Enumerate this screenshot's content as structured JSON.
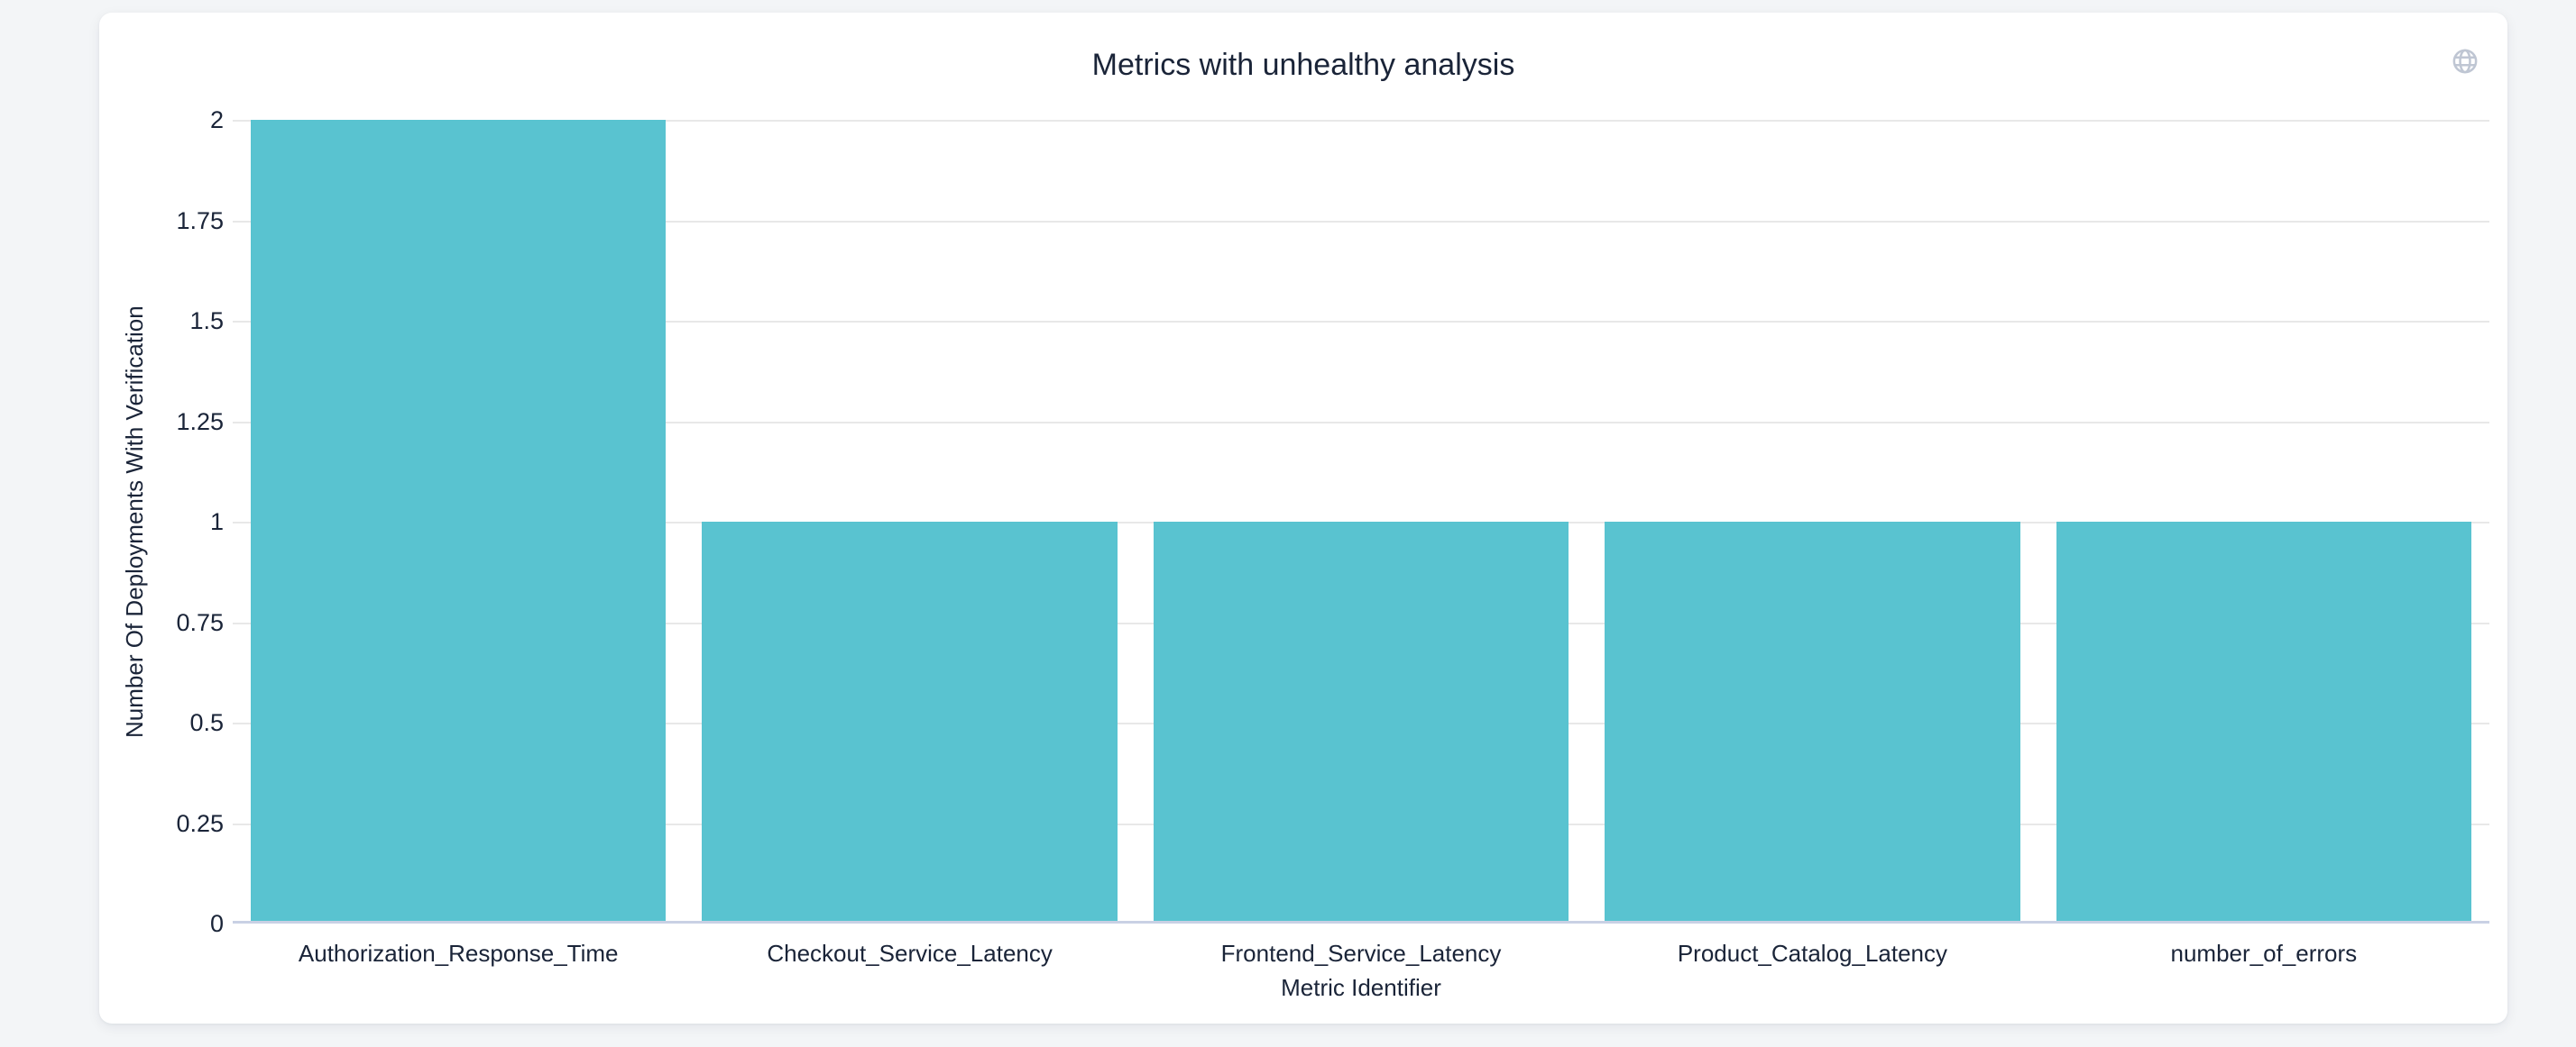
{
  "page": {
    "background_color": "#F3F5F7",
    "card_background": "#FFFFFF"
  },
  "header": {
    "icon": "globe-icon",
    "icon_color": "#BFC6D3"
  },
  "chart_data": {
    "type": "bar",
    "title": "Metrics with unhealthy analysis",
    "categories": [
      "Authorization_Response_Time",
      "Checkout_Service_Latency",
      "Frontend_Service_Latency",
      "Product_Catalog_Latency",
      "number_of_errors"
    ],
    "values": [
      2,
      1,
      1,
      1,
      1
    ],
    "xlabel": "Metric Identifier",
    "ylabel": "Number Of Deployments With Verification",
    "ylim": [
      0,
      2
    ],
    "yticks": [
      0,
      0.25,
      0.5,
      0.75,
      1,
      1.25,
      1.5,
      1.75,
      2
    ],
    "ytick_labels": [
      "0",
      "0.25",
      "0.5",
      "0.75",
      "1",
      "1.25",
      "1.5",
      "1.75",
      "2"
    ],
    "grid": true,
    "legend_position": "none",
    "colors": {
      "bar": "#59C3D0",
      "grid_line": "#E8E8E8",
      "axis_line": "#C9D1E4",
      "text": "#1A2438"
    }
  }
}
